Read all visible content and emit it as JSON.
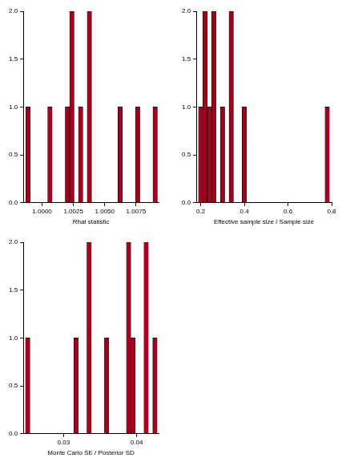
{
  "chart_data": [
    {
      "type": "histogram",
      "x_label": "Rhat statistic",
      "color": "#a3001e",
      "bins": [
        0.9987,
        0.99905,
        0.9994,
        0.99975,
        1.0001,
        1.00045,
        1.0008,
        1.00115,
        1.0015,
        1.00185,
        1.0022,
        1.00255,
        1.0029,
        1.00325,
        1.0036,
        1.00395,
        1.0043,
        1.00465,
        1.005,
        1.00535,
        1.0057,
        1.00605,
        1.0064,
        1.00675,
        1.0071,
        1.00745,
        1.0078,
        1.00815,
        1.0085,
        1.00885,
        1.0092
      ],
      "counts": [
        1,
        0,
        0,
        0,
        0,
        1,
        0,
        0,
        0,
        1,
        2,
        0,
        1,
        0,
        2,
        0,
        0,
        0,
        0,
        0,
        0,
        1,
        0,
        0,
        0,
        1,
        0,
        0,
        0,
        1
      ],
      "xlim": [
        0.9985,
        1.0093
      ],
      "xticks": [
        {
          "value": 1.0,
          "label": "1.0000"
        },
        {
          "value": 1.0025,
          "label": "1.0025"
        },
        {
          "value": 1.005,
          "label": "1.0050"
        },
        {
          "value": 1.0075,
          "label": "1.0075"
        }
      ],
      "ylim": [
        0,
        2
      ],
      "yticks": [
        {
          "value": 0,
          "label": "0.0"
        },
        0.5,
        {
          "value": 1,
          "label": "1.0"
        },
        1.5,
        {
          "value": 2,
          "label": "2.0"
        }
      ],
      "grid": false
    },
    {
      "type": "histogram",
      "x_label": "Effective sample size / Sample size",
      "color": "#a3001e",
      "bins": [
        0.19,
        0.21,
        0.23,
        0.25,
        0.27,
        0.29,
        0.31,
        0.33,
        0.35,
        0.37,
        0.39,
        0.41,
        0.43,
        0.45,
        0.47,
        0.49,
        0.51,
        0.53,
        0.55,
        0.57,
        0.59,
        0.61,
        0.63,
        0.65,
        0.67,
        0.69,
        0.71,
        0.73,
        0.75,
        0.77,
        0.79
      ],
      "counts": [
        1,
        2,
        1,
        2,
        0,
        1,
        0,
        2,
        0,
        0,
        1,
        0,
        0,
        0,
        0,
        0,
        0,
        0,
        0,
        0,
        0,
        0,
        0,
        0,
        0,
        0,
        0,
        0,
        0,
        1
      ],
      "xlim": [
        0.18,
        0.8
      ],
      "xticks": [
        0.2,
        0.4,
        0.6,
        0.8
      ],
      "ylim": [
        0,
        2
      ],
      "yticks": [
        {
          "value": 0,
          "label": "0.0"
        },
        0.5,
        {
          "value": 1,
          "label": "1.0"
        },
        1.5,
        {
          "value": 2,
          "label": "2.0"
        }
      ],
      "grid": false
    },
    {
      "type": "histogram",
      "x_label": "Monte Carlo SE / Posterior SD",
      "color": "#a3001e",
      "bins": [
        0.0248,
        0.0254,
        0.026,
        0.0266,
        0.0272,
        0.0278,
        0.0284,
        0.029,
        0.0296,
        0.0302,
        0.0308,
        0.0314,
        0.032,
        0.0326,
        0.0332,
        0.0338,
        0.0344,
        0.035,
        0.0356,
        0.0362,
        0.0368,
        0.0374,
        0.038,
        0.0386,
        0.0392,
        0.0398,
        0.0404,
        0.041,
        0.0416,
        0.0422,
        0.0428
      ],
      "counts": [
        1,
        0,
        0,
        0,
        0,
        0,
        0,
        0,
        0,
        0,
        0,
        1,
        0,
        0,
        2,
        0,
        0,
        0,
        1,
        0,
        0,
        0,
        0,
        2,
        1,
        0,
        0,
        2,
        0,
        1
      ],
      "xlim": [
        0.0245,
        0.043
      ],
      "xticks": [
        0.03,
        0.04
      ],
      "ylim": [
        0,
        2
      ],
      "yticks": [
        {
          "value": 0,
          "label": "0.0"
        },
        0.5,
        {
          "value": 1,
          "label": "1.0"
        },
        1.5,
        {
          "value": 2,
          "label": "2.0"
        }
      ],
      "grid": false
    }
  ]
}
